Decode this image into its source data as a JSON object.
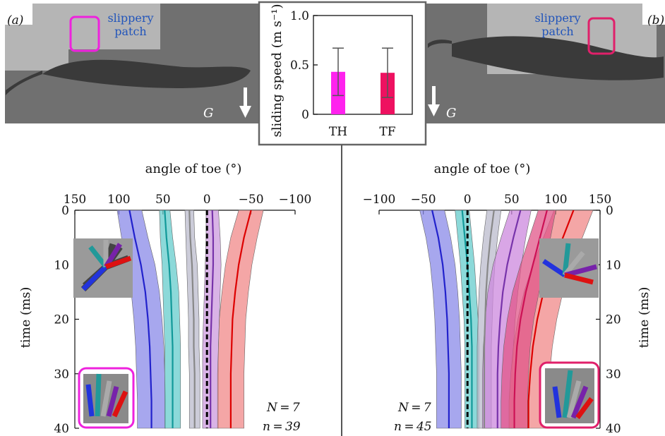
{
  "panels": {
    "a": {
      "letter": "(a)",
      "patch_label_line1": "slippery",
      "patch_label_line2": "patch",
      "gravity_label": "G",
      "highlight_color": "#ee22dd"
    },
    "b": {
      "letter": "(b)",
      "patch_label_line1": "slippery",
      "patch_label_line2": "patch",
      "gravity_label": "G",
      "highlight_color": "#e0206a"
    }
  },
  "chart_data": [
    {
      "type": "bar",
      "name": "inset",
      "categories": [
        "TH",
        "TF"
      ],
      "values": [
        0.43,
        0.42
      ],
      "error_low": [
        0.19,
        0.17
      ],
      "error_high": [
        0.67,
        0.67
      ],
      "colors": [
        "#ff22ee",
        "#ee1160"
      ],
      "ylabel": "sliding speed (m s⁻¹)",
      "ylim": [
        0,
        1.0
      ],
      "yticks": [
        0,
        0.5,
        1.0
      ],
      "ytick_labels": [
        "0",
        "0.5",
        "1.0"
      ]
    },
    {
      "type": "line",
      "name": "toe-angles-a",
      "xlabel": "angle of toe (°)",
      "ylabel": "time (ms)",
      "xlim": [
        150,
        -100
      ],
      "xticks": [
        150,
        100,
        50,
        0,
        -50,
        -100
      ],
      "xtick_labels": [
        "150",
        "100",
        "50",
        "0",
        "−50",
        "−100"
      ],
      "ylim": [
        0,
        40
      ],
      "yticks": [
        0,
        10,
        20,
        30,
        40
      ],
      "ytick_labels": [
        "0",
        "10",
        "20",
        "30",
        "40"
      ],
      "N_label": "N = 7",
      "n_label": "n = 39",
      "time": [
        0,
        5,
        10,
        15,
        20,
        25,
        30,
        35,
        40
      ],
      "series": [
        {
          "color": "#2222cc",
          "band_color": "#8a8ae8",
          "mean": [
            88,
            82,
            75,
            70,
            67,
            65,
            64,
            63,
            63
          ],
          "half_width": [
            14,
            15,
            16,
            16,
            16,
            16,
            16,
            16,
            16
          ]
        },
        {
          "color": "#119999",
          "band_color": "#66cccc",
          "mean": [
            48,
            46,
            43,
            41,
            40,
            39,
            39,
            39,
            39
          ],
          "half_width": [
            6,
            7,
            8,
            9,
            9,
            9,
            9,
            9,
            9
          ]
        },
        {
          "color": "#888888",
          "band_color": "#bbbbcc",
          "mean": [
            20,
            19,
            17,
            16,
            15,
            15,
            14,
            14,
            14
          ],
          "half_width": [
            5,
            5,
            6,
            6,
            6,
            6,
            6,
            6,
            6
          ]
        },
        {
          "color": "#7733aa",
          "band_color": "#cc99dd",
          "mean": [
            -6,
            -7,
            -7,
            -6,
            -5,
            -4,
            -4,
            -4,
            -4
          ],
          "half_width": [
            7,
            8,
            9,
            9,
            9,
            9,
            9,
            9,
            9
          ]
        },
        {
          "color": "#000000",
          "band_color": "#dddddd",
          "mean": [
            0,
            0,
            0,
            0,
            0,
            0,
            0,
            0,
            0
          ],
          "half_width": [
            0,
            0,
            0,
            0,
            0,
            0,
            0,
            0,
            0
          ],
          "dashed": true
        },
        {
          "color": "#dd0000",
          "band_color": "#f08888",
          "mean": [
            -50,
            -42,
            -36,
            -32,
            -29,
            -28,
            -27,
            -27,
            -27
          ],
          "half_width": [
            14,
            15,
            15,
            15,
            15,
            15,
            15,
            15,
            15
          ]
        }
      ]
    },
    {
      "type": "line",
      "name": "toe-angles-b",
      "xlabel": "angle of toe (°)",
      "ylabel": "time (ms)",
      "xlim": [
        -100,
        150
      ],
      "xticks": [
        -100,
        -50,
        0,
        50,
        100,
        150
      ],
      "xtick_labels": [
        "−100",
        "−50",
        "0",
        "50",
        "100",
        "150"
      ],
      "ylim": [
        0,
        40
      ],
      "yticks": [
        0,
        10,
        20,
        30,
        40
      ],
      "ytick_labels": [
        "0",
        "10",
        "20",
        "30",
        "40"
      ],
      "N_label": "N = 7",
      "n_label": "n = 45",
      "time": [
        0,
        5,
        10,
        15,
        20,
        25,
        30,
        35,
        40
      ],
      "series": [
        {
          "color": "#2222cc",
          "band_color": "#8a8ae8",
          "mean": [
            -40,
            -33,
            -28,
            -25,
            -23,
            -22,
            -21,
            -21,
            -21
          ],
          "half_width": [
            14,
            14,
            14,
            14,
            14,
            14,
            14,
            14,
            14
          ]
        },
        {
          "color": "#119999",
          "band_color": "#66cccc",
          "mean": [
            -6,
            -3,
            0,
            2,
            4,
            5,
            5,
            5,
            5
          ],
          "half_width": [
            8,
            8,
            8,
            8,
            8,
            8,
            8,
            8,
            8
          ]
        },
        {
          "color": "#000000",
          "band_color": "#dddddd",
          "mean": [
            0,
            0,
            0,
            0,
            0,
            0,
            0,
            0,
            0
          ],
          "half_width": [
            0,
            0,
            0,
            0,
            0,
            0,
            0,
            0,
            0
          ],
          "dashed": true
        },
        {
          "color": "#888888",
          "band_color": "#bbbbcc",
          "mean": [
            30,
            26,
            23,
            21,
            20,
            19,
            19,
            19,
            19
          ],
          "half_width": [
            8,
            8,
            8,
            8,
            8,
            8,
            8,
            8,
            8
          ]
        },
        {
          "color": "#7733aa",
          "band_color": "#cc88dd",
          "mean": [
            60,
            52,
            45,
            40,
            37,
            35,
            34,
            34,
            34
          ],
          "half_width": [
            12,
            14,
            16,
            17,
            17,
            17,
            17,
            17,
            17
          ]
        },
        {
          "color": "#dd0000",
          "band_color": "#f08888",
          "mean": [
            120,
            108,
            96,
            86,
            79,
            74,
            71,
            69,
            69
          ],
          "half_width": [
            22,
            22,
            22,
            22,
            22,
            22,
            22,
            22,
            22
          ]
        },
        {
          "color": "#cc1155",
          "band_color": "#e05588",
          "mean": [
            90,
            82,
            74,
            66,
            60,
            56,
            54,
            53,
            53
          ],
          "half_width": [
            10,
            12,
            14,
            15,
            15,
            15,
            15,
            15,
            15
          ]
        }
      ]
    }
  ]
}
